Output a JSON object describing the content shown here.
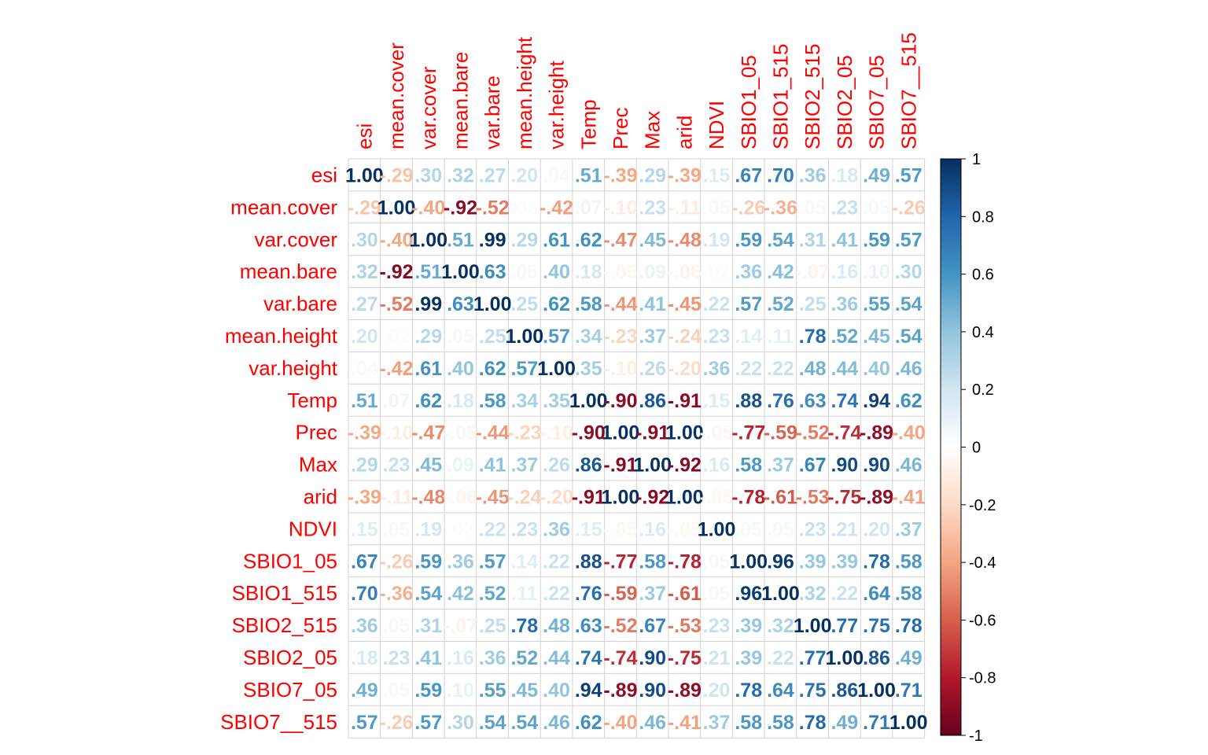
{
  "chart_data": {
    "type": "heatmap",
    "variables": [
      "esi",
      "mean.cover",
      "var.cover",
      "mean.bare",
      "var.bare",
      "mean.height",
      "var.height",
      "Temp",
      "Prec",
      "Max",
      "arid",
      "NDVI",
      "SBIO1_05",
      "SBIO1_515",
      "SBIO2_515",
      "SBIO2_05",
      "SBIO7_05",
      "SBIO7__515"
    ],
    "matrix": [
      [
        1.0,
        -0.29,
        0.3,
        0.32,
        0.27,
        0.2,
        0.04,
        0.51,
        -0.39,
        0.29,
        -0.39,
        0.15,
        0.67,
        0.7,
        0.36,
        0.18,
        0.49,
        0.57
      ],
      [
        -0.29,
        1.0,
        -0.4,
        -0.92,
        -0.52,
        0.02,
        -0.42,
        0.07,
        -0.1,
        0.23,
        -0.11,
        0.05,
        -0.26,
        -0.36,
        0.05,
        0.23,
        0.05,
        -0.26
      ],
      [
        0.3,
        -0.4,
        1.0,
        0.51,
        0.99,
        0.29,
        0.61,
        0.62,
        -0.47,
        0.45,
        -0.48,
        0.19,
        0.59,
        0.54,
        0.31,
        0.41,
        0.59,
        0.57
      ],
      [
        0.32,
        -0.92,
        0.51,
        1.0,
        0.63,
        0.05,
        0.4,
        0.18,
        -0.05,
        0.09,
        -0.06,
        0.02,
        0.36,
        0.42,
        -0.07,
        0.16,
        0.1,
        0.3
      ],
      [
        0.27,
        -0.52,
        0.99,
        0.63,
        1.0,
        0.25,
        0.62,
        0.58,
        -0.44,
        0.41,
        -0.45,
        0.22,
        0.57,
        0.52,
        0.25,
        0.36,
        0.55,
        0.54
      ],
      [
        0.2,
        0.02,
        0.29,
        0.05,
        0.25,
        1.0,
        0.57,
        0.34,
        -0.23,
        0.37,
        -0.24,
        0.23,
        0.14,
        0.11,
        0.78,
        0.52,
        0.45,
        0.54
      ],
      [
        0.04,
        -0.42,
        0.61,
        0.4,
        0.62,
        0.57,
        1.0,
        0.35,
        -0.1,
        0.26,
        -0.2,
        0.36,
        0.22,
        0.22,
        0.48,
        0.44,
        0.4,
        0.46
      ],
      [
        0.51,
        0.07,
        0.62,
        0.18,
        0.58,
        0.34,
        0.35,
        1.0,
        -0.9,
        0.86,
        -0.91,
        0.15,
        0.88,
        0.76,
        0.63,
        0.74,
        0.94,
        0.62
      ],
      [
        -0.39,
        -0.1,
        -0.47,
        -0.05,
        -0.44,
        -0.23,
        -0.1,
        -0.9,
        1.0,
        -0.91,
        1.0,
        -0.05,
        -0.77,
        -0.59,
        -0.52,
        -0.74,
        -0.89,
        -0.4
      ],
      [
        0.29,
        0.23,
        0.45,
        0.09,
        0.41,
        0.37,
        0.26,
        0.86,
        -0.91,
        1.0,
        -0.92,
        0.16,
        0.58,
        0.37,
        0.67,
        0.9,
        0.9,
        0.46
      ],
      [
        -0.39,
        -0.11,
        -0.48,
        -0.06,
        -0.45,
        -0.24,
        -0.2,
        -0.91,
        1.0,
        -0.92,
        1.0,
        -0.05,
        -0.78,
        -0.61,
        -0.53,
        -0.75,
        -0.89,
        -0.41
      ],
      [
        0.15,
        0.05,
        0.19,
        0.02,
        0.22,
        0.23,
        0.36,
        0.15,
        -0.05,
        0.16,
        -0.05,
        1.0,
        0.05,
        0.05,
        0.23,
        0.21,
        0.2,
        0.37
      ],
      [
        0.67,
        -0.26,
        0.59,
        0.36,
        0.57,
        0.14,
        0.22,
        0.88,
        -0.77,
        0.58,
        -0.78,
        0.05,
        1.0,
        0.96,
        0.39,
        0.39,
        0.78,
        0.58
      ],
      [
        0.7,
        -0.36,
        0.54,
        0.42,
        0.52,
        0.11,
        0.22,
        0.76,
        -0.59,
        0.37,
        -0.61,
        0.05,
        0.96,
        1.0,
        0.32,
        0.22,
        0.64,
        0.58
      ],
      [
        0.36,
        0.05,
        0.31,
        -0.07,
        0.25,
        0.78,
        0.48,
        0.63,
        -0.52,
        0.67,
        -0.53,
        0.23,
        0.39,
        0.32,
        1.0,
        0.77,
        0.75,
        0.78
      ],
      [
        0.18,
        0.23,
        0.41,
        0.16,
        0.36,
        0.52,
        0.44,
        0.74,
        -0.74,
        0.9,
        -0.75,
        0.21,
        0.39,
        0.22,
        0.77,
        1.0,
        0.86,
        0.49
      ],
      [
        0.49,
        0.05,
        0.59,
        0.1,
        0.55,
        0.45,
        0.4,
        0.94,
        -0.89,
        0.9,
        -0.89,
        0.2,
        0.78,
        0.64,
        0.75,
        0.86,
        1.0,
        0.71
      ],
      [
        0.57,
        -0.26,
        0.57,
        0.3,
        0.54,
        0.54,
        0.46,
        0.62,
        -0.4,
        0.46,
        -0.41,
        0.37,
        0.58,
        0.58,
        0.78,
        0.49,
        0.71,
        1.0
      ]
    ],
    "colorbar_ticks": [
      "1",
      "0.8",
      "0.6",
      "0.4",
      "0.2",
      "0",
      "-0.2",
      "-0.4",
      "-0.6",
      "-0.8",
      "-1"
    ],
    "colorbar_range": [
      -1,
      1
    ],
    "colors": {
      "label": "#ff0000",
      "grid": "#d3d3d3",
      "scale_low": "#67001f",
      "scale_mid": "#ffffff",
      "scale_high": "#053061"
    }
  }
}
